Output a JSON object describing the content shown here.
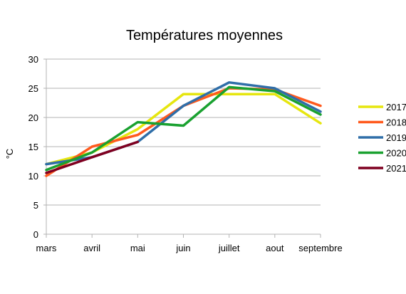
{
  "chart_data": {
    "type": "line",
    "title": "Températures moyennes",
    "xlabel": "",
    "ylabel": "°C",
    "categories": [
      "mars",
      "avril",
      "mai",
      "juin",
      "juillet",
      "aout",
      "septembre"
    ],
    "ylim": [
      0,
      30
    ],
    "yticks": [
      0,
      5,
      10,
      15,
      20,
      25,
      30
    ],
    "grid": true,
    "legend_position": "right",
    "series": [
      {
        "name": "2017",
        "color": "#e6e60f",
        "values": [
          12,
          14,
          18,
          24,
          24,
          24,
          19
        ]
      },
      {
        "name": "2018",
        "color": "#ff5a1e",
        "values": [
          10,
          15,
          17,
          22,
          25,
          24.8,
          22
        ]
      },
      {
        "name": "2019",
        "color": "#2f6ea8",
        "values": [
          12,
          13.2,
          15.8,
          22,
          26,
          25,
          21
        ]
      },
      {
        "name": "2020",
        "color": "#1aa130",
        "values": [
          11,
          14,
          19.2,
          18.6,
          25.2,
          24.5,
          20.5
        ]
      },
      {
        "name": "2021",
        "color": "#7f0020",
        "values": [
          10.5,
          13.2,
          15.8,
          null,
          null,
          null,
          null
        ]
      }
    ]
  }
}
